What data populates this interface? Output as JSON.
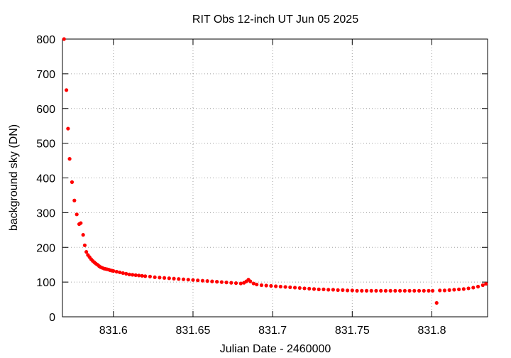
{
  "chart_data": {
    "type": "scatter",
    "title": "RIT Obs 12-inch UT Jun 05 2025",
    "xlabel": "Julian Date - 2460000",
    "ylabel": "background sky (DN)",
    "xlim": [
      831.568,
      831.835
    ],
    "ylim": [
      0,
      800
    ],
    "grid": true,
    "legend": "none",
    "marker_color": "#ff0000",
    "x_ticks": [
      {
        "value": 831.6,
        "label": "831.6"
      },
      {
        "value": 831.65,
        "label": "831.65"
      },
      {
        "value": 831.7,
        "label": "831.7"
      },
      {
        "value": 831.75,
        "label": "831.75"
      },
      {
        "value": 831.8,
        "label": "831.8"
      }
    ],
    "y_ticks": [
      {
        "value": 0,
        "label": "0"
      },
      {
        "value": 100,
        "label": "100"
      },
      {
        "value": 200,
        "label": "200"
      },
      {
        "value": 300,
        "label": "300"
      },
      {
        "value": 400,
        "label": "400"
      },
      {
        "value": 500,
        "label": "500"
      },
      {
        "value": 600,
        "label": "600"
      },
      {
        "value": 700,
        "label": "700"
      },
      {
        "value": 800,
        "label": "800"
      }
    ],
    "series": [
      {
        "points": [
          [
            831.569,
            800
          ],
          [
            831.5705,
            653
          ],
          [
            831.5715,
            542
          ],
          [
            831.5725,
            455
          ],
          [
            831.574,
            388
          ],
          [
            831.5755,
            335
          ],
          [
            831.577,
            295
          ],
          [
            831.5785,
            267
          ],
          [
            831.5795,
            270
          ],
          [
            831.581,
            236
          ],
          [
            831.582,
            206
          ],
          [
            831.583,
            187
          ],
          [
            831.584,
            178
          ],
          [
            831.585,
            172
          ],
          [
            831.586,
            166
          ],
          [
            831.587,
            161
          ],
          [
            831.588,
            157
          ],
          [
            831.589,
            153
          ],
          [
            831.59,
            150
          ],
          [
            831.591,
            146
          ],
          [
            831.592,
            143
          ],
          [
            831.593,
            141
          ],
          [
            831.594,
            139
          ],
          [
            831.595,
            138
          ],
          [
            831.596,
            137
          ],
          [
            831.597,
            136
          ],
          [
            831.598,
            134
          ],
          [
            831.599,
            133
          ],
          [
            831.6,
            132
          ],
          [
            831.602,
            130
          ],
          [
            831.604,
            128
          ],
          [
            831.606,
            126
          ],
          [
            831.608,
            124
          ],
          [
            831.61,
            122
          ],
          [
            831.612,
            121
          ],
          [
            831.614,
            120
          ],
          [
            831.616,
            119
          ],
          [
            831.618,
            118
          ],
          [
            831.62,
            117
          ],
          [
            831.623,
            116
          ],
          [
            831.626,
            114
          ],
          [
            831.629,
            113
          ],
          [
            831.632,
            112
          ],
          [
            831.635,
            111
          ],
          [
            831.638,
            110
          ],
          [
            831.641,
            109
          ],
          [
            831.644,
            108
          ],
          [
            831.647,
            107
          ],
          [
            831.65,
            106
          ],
          [
            831.653,
            105
          ],
          [
            831.656,
            104
          ],
          [
            831.659,
            103
          ],
          [
            831.662,
            102
          ],
          [
            831.665,
            101
          ],
          [
            831.668,
            100
          ],
          [
            831.671,
            99
          ],
          [
            831.674,
            98
          ],
          [
            831.677,
            97
          ],
          [
            831.68,
            96
          ],
          [
            831.682,
            98
          ],
          [
            831.6835,
            102
          ],
          [
            831.6848,
            107
          ],
          [
            831.686,
            102
          ],
          [
            831.688,
            96
          ],
          [
            831.69,
            93
          ],
          [
            831.693,
            91
          ],
          [
            831.696,
            90
          ],
          [
            831.699,
            89
          ],
          [
            831.702,
            88
          ],
          [
            831.705,
            87
          ],
          [
            831.708,
            86
          ],
          [
            831.711,
            85
          ],
          [
            831.714,
            84
          ],
          [
            831.717,
            83
          ],
          [
            831.72,
            82
          ],
          [
            831.723,
            81
          ],
          [
            831.726,
            80
          ],
          [
            831.729,
            79
          ],
          [
            831.732,
            79
          ],
          [
            831.735,
            78
          ],
          [
            831.738,
            78
          ],
          [
            831.741,
            77
          ],
          [
            831.744,
            77
          ],
          [
            831.747,
            76
          ],
          [
            831.75,
            76
          ],
          [
            831.753,
            75
          ],
          [
            831.756,
            75
          ],
          [
            831.759,
            75
          ],
          [
            831.762,
            75
          ],
          [
            831.765,
            75
          ],
          [
            831.768,
            75
          ],
          [
            831.771,
            75
          ],
          [
            831.774,
            75
          ],
          [
            831.777,
            75
          ],
          [
            831.78,
            75
          ],
          [
            831.783,
            75
          ],
          [
            831.786,
            75
          ],
          [
            831.789,
            75
          ],
          [
            831.792,
            75
          ],
          [
            831.795,
            75
          ],
          [
            831.798,
            75
          ],
          [
            831.8005,
            75
          ],
          [
            831.803,
            40
          ],
          [
            831.805,
            76
          ],
          [
            831.808,
            76
          ],
          [
            831.811,
            77
          ],
          [
            831.814,
            78
          ],
          [
            831.817,
            79
          ],
          [
            831.82,
            80
          ],
          [
            831.823,
            82
          ],
          [
            831.826,
            84
          ],
          [
            831.829,
            87
          ],
          [
            831.832,
            91
          ],
          [
            831.834,
            95
          ]
        ]
      }
    ]
  }
}
